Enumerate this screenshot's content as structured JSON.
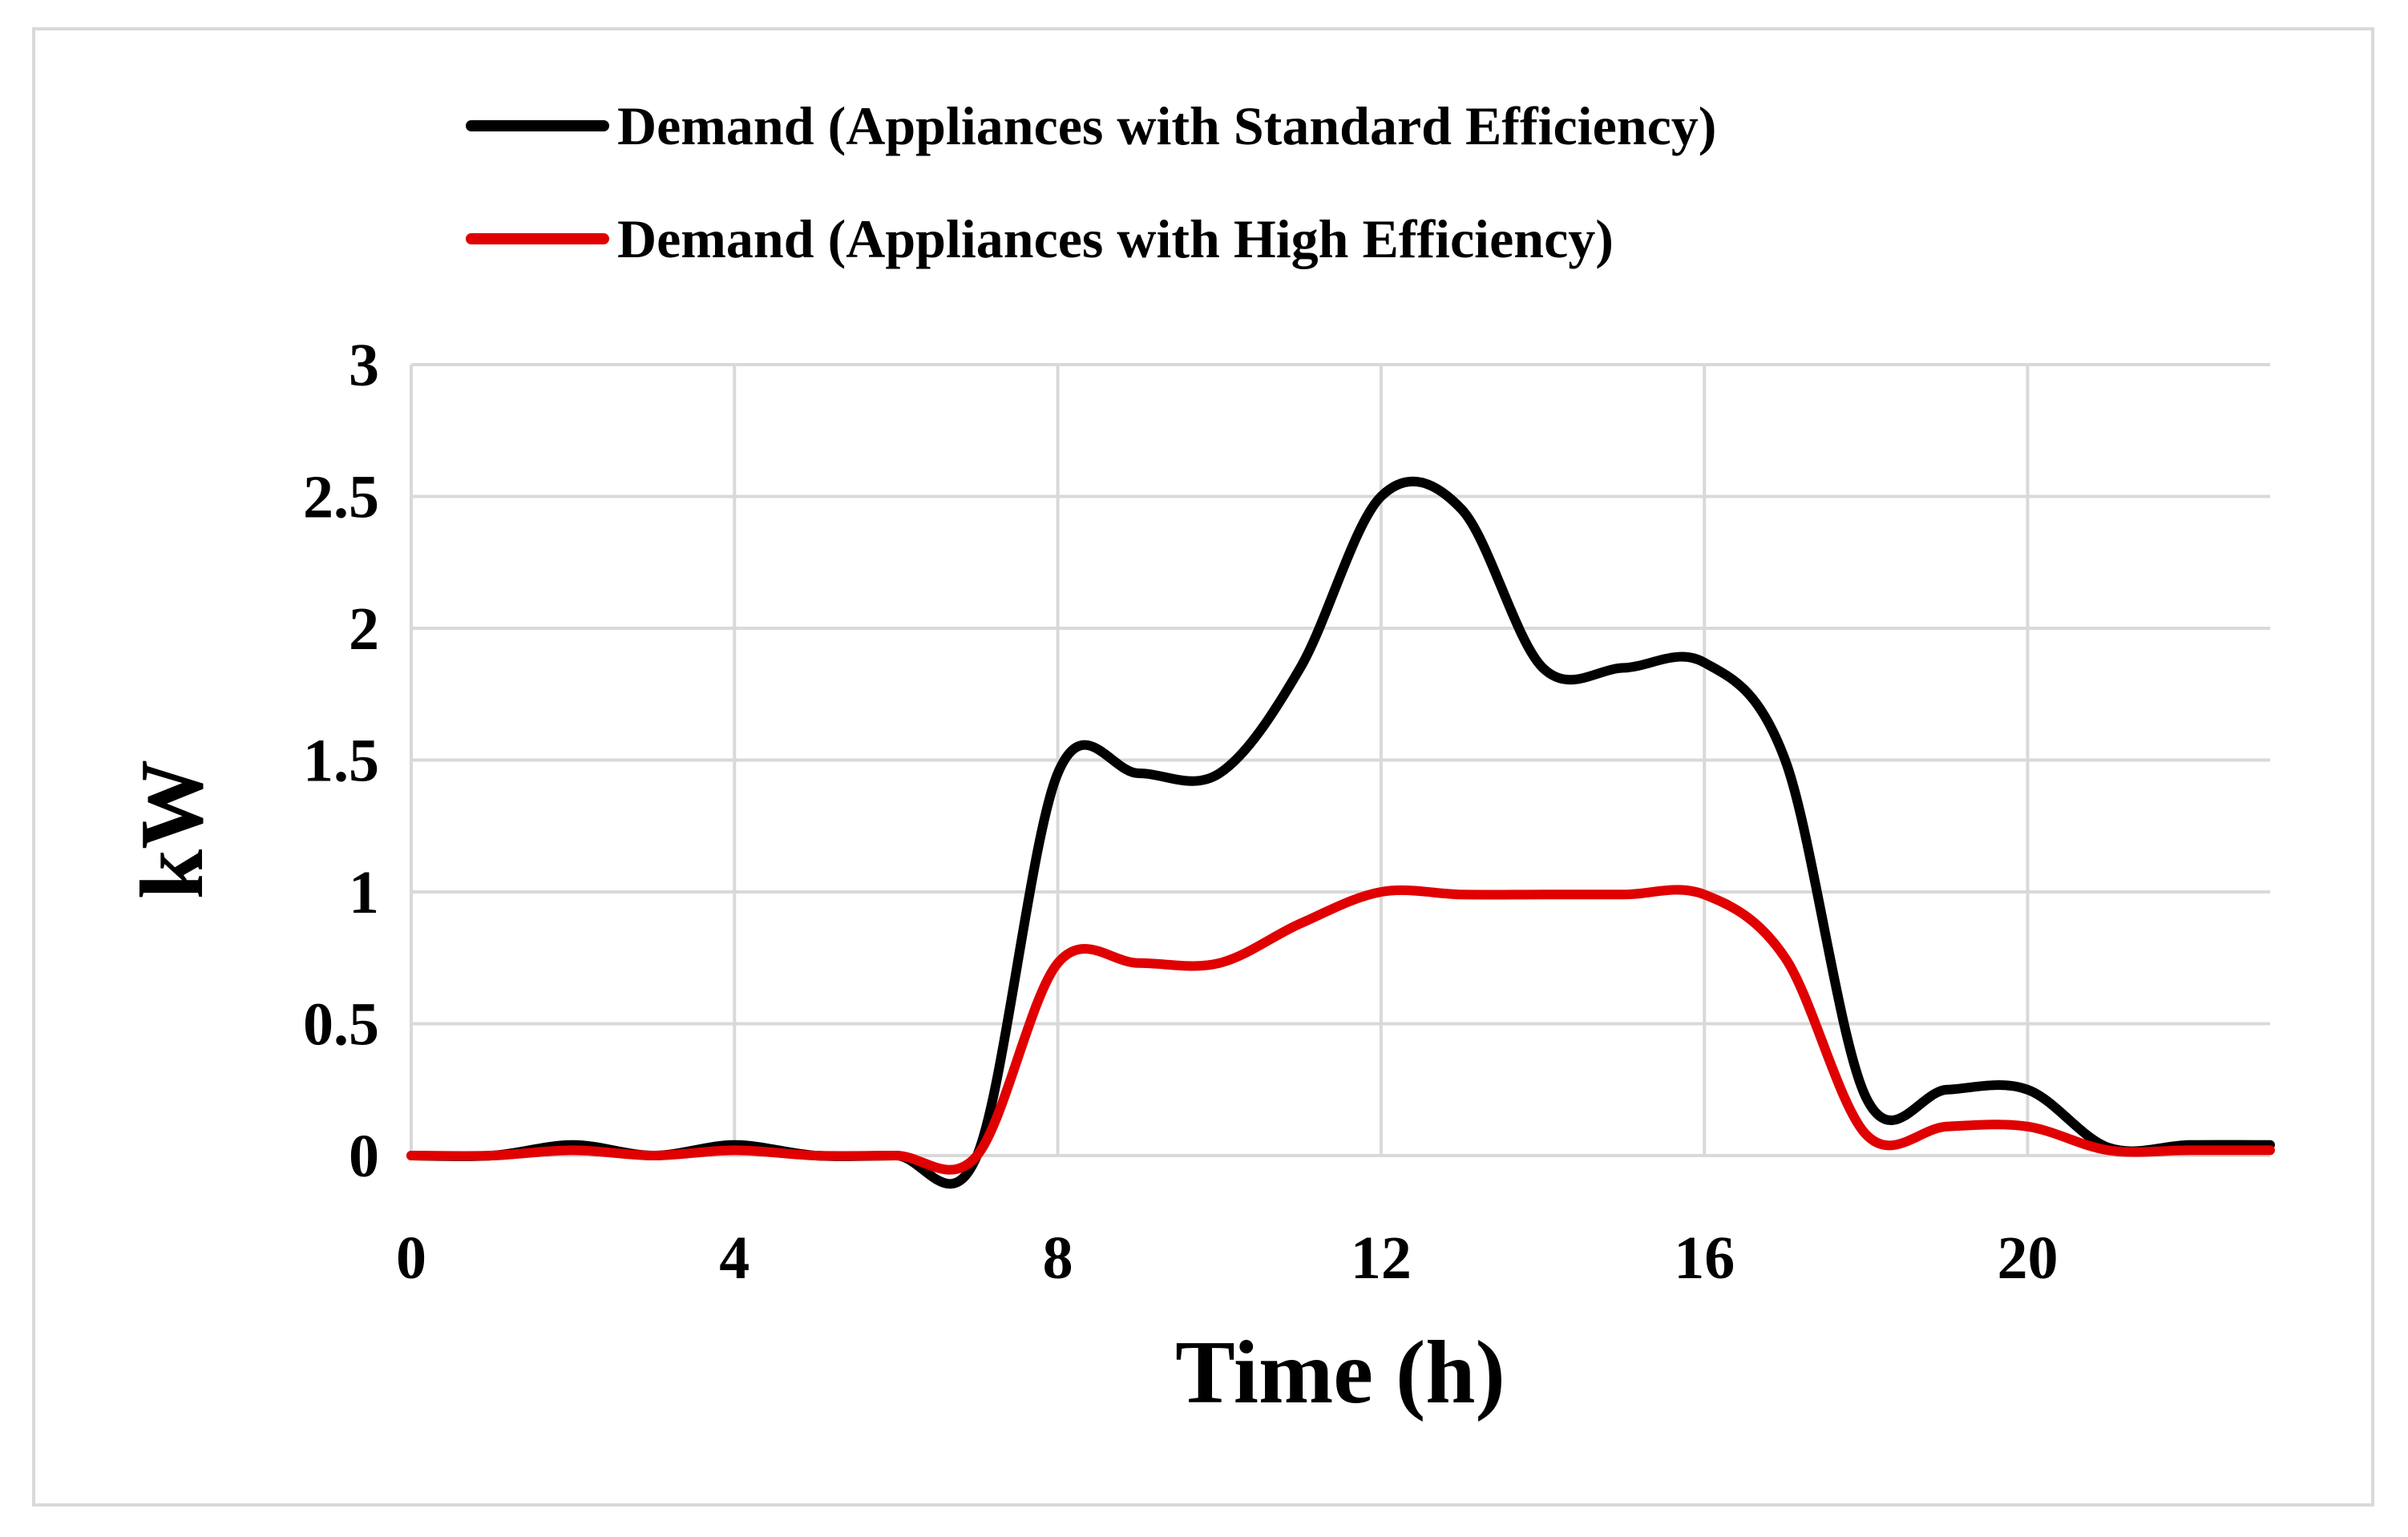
{
  "chart_data": {
    "type": "line",
    "title": "",
    "xlabel": "Time (h)",
    "ylabel": "kW",
    "xlim": [
      0,
      23
    ],
    "ylim": [
      0,
      3
    ],
    "xticks": [
      0,
      4,
      8,
      12,
      16,
      20
    ],
    "xtick_labels": [
      "0",
      "4",
      "8",
      "12",
      "16",
      "20"
    ],
    "yticks": [
      0,
      0.5,
      1,
      1.5,
      2,
      2.5,
      3
    ],
    "ytick_labels": [
      "0",
      "0.5",
      "1",
      "1.5",
      "2",
      "2.5",
      "3"
    ],
    "grid": true,
    "legend_position": "top",
    "x": [
      0,
      1,
      2,
      3,
      4,
      5,
      6,
      7,
      8,
      9,
      10,
      11,
      12,
      13,
      14,
      15,
      16,
      17,
      18,
      19,
      20,
      21,
      22,
      23
    ],
    "series": [
      {
        "name": "Demand (Appliances with Standard Efficiency)",
        "color": "#000000",
        "values": [
          0,
          0,
          0.04,
          0,
          0.04,
          0,
          0,
          0,
          1.45,
          1.45,
          1.45,
          1.85,
          2.5,
          2.45,
          1.85,
          1.85,
          1.87,
          1.5,
          0.22,
          0.25,
          0.25,
          0.03,
          0.04,
          0.04
        ]
      },
      {
        "name": "Demand (Appliances with High Efficiency)",
        "color": "#e00000",
        "values": [
          0,
          0,
          0.02,
          0,
          0.02,
          0,
          0,
          0,
          0.73,
          0.73,
          0.73,
          0.88,
          1.0,
          0.99,
          0.99,
          0.99,
          0.99,
          0.75,
          0.08,
          0.11,
          0.11,
          0.02,
          0.02,
          0.02
        ]
      }
    ]
  }
}
